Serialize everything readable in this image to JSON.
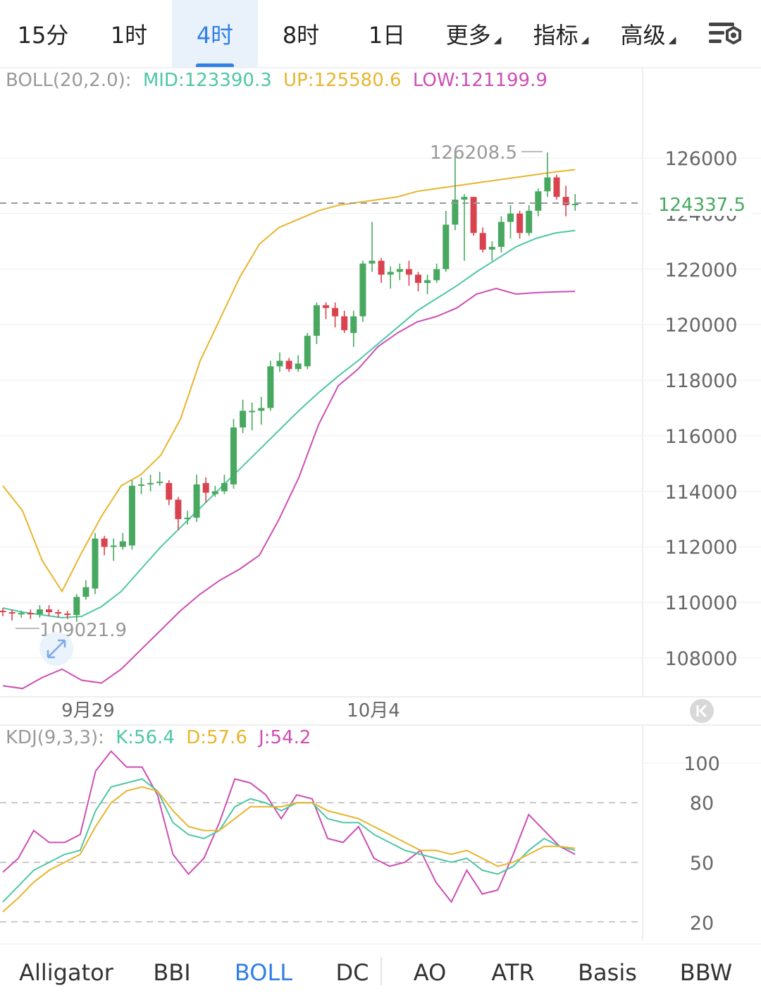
{
  "timeframe_tabs": [
    {
      "label": "15分"
    },
    {
      "label": "1时"
    },
    {
      "label": "4时",
      "active": true
    },
    {
      "label": "8时"
    },
    {
      "label": "1日"
    },
    {
      "label": "更多",
      "dropdown": true
    },
    {
      "label": "指标",
      "dropdown": true
    },
    {
      "label": "高级",
      "dropdown": true
    }
  ],
  "settings_icon": "chart-settings-icon",
  "boll_legend": {
    "name": "BOLL(20,2.0):",
    "mid": "MID:123390.3",
    "up": "UP:125580.6",
    "low": "LOW:121199.9"
  },
  "kdj_legend": {
    "name": "KDJ(9,3,3):",
    "k": "K:56.4",
    "d": "D:57.6",
    "j": "J:54.2"
  },
  "price_axis": [
    "126000",
    "124000",
    "122000",
    "120000",
    "118000",
    "116000",
    "114000",
    "112000",
    "110000",
    "108000"
  ],
  "current_price": "124337.5",
  "high_marker": "126208.5",
  "low_marker": "109021.9",
  "date_labels": [
    "9月29",
    "10月4"
  ],
  "kdj_axis": [
    "100",
    "80",
    "50",
    "20"
  ],
  "indicator_tabs": [
    {
      "label": "Alligator"
    },
    {
      "label": "BBI"
    },
    {
      "label": "BOLL",
      "active": true
    },
    {
      "label": "DC"
    },
    {
      "label": "AO"
    },
    {
      "label": "ATR"
    },
    {
      "label": "Basis"
    },
    {
      "label": "BBW"
    }
  ],
  "colors": {
    "up": "#48a860",
    "down": "#d9434f",
    "mid": "#4fc7a5",
    "upper": "#e8b52e",
    "lower": "#cc4fb4",
    "accent": "#2f7fe8"
  },
  "chart_data": {
    "type": "candlestick",
    "ylim": [
      107000,
      127500
    ],
    "candles": [
      [
        109700,
        109650,
        109800,
        109500
      ],
      [
        109650,
        109600,
        109750,
        109350
      ],
      [
        109600,
        109620,
        109700,
        109450
      ],
      [
        109620,
        109580,
        109750,
        109400
      ],
      [
        109580,
        109750,
        109900,
        109450
      ],
      [
        109750,
        109650,
        109900,
        109500
      ],
      [
        109650,
        109600,
        109750,
        109450
      ],
      [
        109600,
        109550,
        109700,
        109400
      ],
      [
        109550,
        110200,
        110300,
        109300
      ],
      [
        110200,
        110550,
        110800,
        110100
      ],
      [
        110500,
        112300,
        112500,
        110300
      ],
      [
        112300,
        112000,
        112400,
        111700
      ],
      [
        112000,
        112050,
        112300,
        111500
      ],
      [
        112000,
        112200,
        112500,
        111900
      ],
      [
        112050,
        114200,
        114400,
        111900
      ],
      [
        114200,
        114250,
        114500,
        113900
      ],
      [
        114250,
        114300,
        114600,
        114000
      ],
      [
        114300,
        114350,
        114700,
        114200
      ],
      [
        114300,
        113700,
        114400,
        113500
      ],
      [
        113700,
        113000,
        113800,
        112600
      ],
      [
        113000,
        113050,
        113300,
        112800
      ],
      [
        113050,
        114250,
        114600,
        112900
      ],
      [
        114300,
        113950,
        114500,
        113600
      ],
      [
        113900,
        114000,
        114200,
        113800
      ],
      [
        114000,
        114300,
        114600,
        113900
      ],
      [
        114250,
        116300,
        116600,
        114100
      ],
      [
        116300,
        116900,
        117300,
        116100
      ],
      [
        116900,
        116900,
        117200,
        116200
      ],
      [
        116900,
        117000,
        117400,
        116400
      ],
      [
        117000,
        118500,
        118700,
        116900
      ],
      [
        118500,
        118700,
        119000,
        118300
      ],
      [
        118700,
        118400,
        118800,
        118300
      ],
      [
        118400,
        118600,
        118900,
        118300
      ],
      [
        118500,
        119600,
        119700,
        118400
      ],
      [
        119600,
        120700,
        120800,
        119300
      ],
      [
        120700,
        120600,
        120800,
        120200
      ],
      [
        120600,
        120300,
        120800,
        119900
      ],
      [
        120300,
        119800,
        120500,
        119700
      ],
      [
        119700,
        120300,
        120500,
        119200
      ],
      [
        120300,
        122200,
        122300,
        120100
      ],
      [
        122200,
        122300,
        123700,
        121900
      ],
      [
        122300,
        121800,
        122400,
        121500
      ],
      [
        121800,
        121900,
        122100,
        121300
      ],
      [
        121900,
        122000,
        122200,
        121600
      ],
      [
        122000,
        121800,
        122300,
        121400
      ],
      [
        121800,
        121500,
        121900,
        121200
      ],
      [
        121500,
        121600,
        121800,
        121100
      ],
      [
        121600,
        122000,
        122200,
        121500
      ],
      [
        122000,
        123600,
        124100,
        121900
      ],
      [
        123600,
        124500,
        126200,
        123400
      ],
      [
        124500,
        124600,
        124700,
        122300
      ],
      [
        124600,
        123300,
        124500,
        123200
      ],
      [
        123300,
        122700,
        123500,
        122600
      ],
      [
        122700,
        122800,
        123000,
        122300
      ],
      [
        122800,
        123700,
        123900,
        122600
      ],
      [
        123700,
        124000,
        124300,
        123100
      ],
      [
        124000,
        123300,
        124100,
        123100
      ],
      [
        123300,
        124100,
        124300,
        123200
      ],
      [
        124100,
        124800,
        124900,
        123900
      ],
      [
        124800,
        125300,
        126200,
        124600
      ],
      [
        125300,
        124600,
        125400,
        124500
      ],
      [
        124600,
        124300,
        125000,
        123900
      ],
      [
        124300,
        124350,
        124700,
        124100
      ]
    ],
    "boll_mid": [
      109800,
      109650,
      109550,
      109450,
      109500,
      109850,
      110400,
      111200,
      112000,
      112700,
      113400,
      114100,
      114800,
      115500,
      116200,
      116900,
      117550,
      118150,
      118700,
      119300,
      119900,
      120500,
      120950,
      121400,
      121900,
      122350,
      122800,
      123100,
      123300,
      123390
    ],
    "boll_upper": [
      114200,
      113300,
      111500,
      110400,
      111800,
      113100,
      114200,
      114600,
      115300,
      116600,
      118700,
      120200,
      121700,
      122900,
      123500,
      123800,
      124100,
      124300,
      124400,
      124500,
      124600,
      124800,
      124900,
      125000,
      125100,
      125200,
      125300,
      125400,
      125500,
      125580
    ],
    "boll_lower": [
      107000,
      106900,
      107300,
      107600,
      107200,
      107100,
      107600,
      108300,
      109000,
      109700,
      110300,
      110800,
      111200,
      111700,
      113000,
      114500,
      116400,
      117800,
      118400,
      119200,
      119700,
      120100,
      120300,
      120600,
      121100,
      121300,
      121100,
      121150,
      121180,
      121200
    ],
    "kdj_ylim": [
      15,
      110
    ],
    "kdj_k": [
      30,
      38,
      46,
      50,
      54,
      56,
      76,
      88,
      90,
      92,
      86,
      70,
      64,
      62,
      66,
      78,
      82,
      80,
      76,
      80,
      80,
      72,
      70,
      70,
      64,
      60,
      56,
      54,
      52,
      50,
      52,
      46,
      44,
      48,
      56,
      62,
      58,
      56
    ],
    "kdj_d": [
      25,
      32,
      40,
      46,
      50,
      54,
      68,
      80,
      86,
      88,
      86,
      76,
      68,
      66,
      66,
      72,
      78,
      78,
      78,
      80,
      80,
      76,
      74,
      72,
      68,
      64,
      60,
      56,
      56,
      54,
      56,
      52,
      48,
      50,
      54,
      58,
      58,
      57
    ],
    "kdj_j": [
      45,
      52,
      66,
      60,
      60,
      64,
      96,
      106,
      98,
      98,
      84,
      54,
      44,
      52,
      70,
      92,
      90,
      84,
      72,
      84,
      82,
      62,
      60,
      68,
      52,
      48,
      50,
      56,
      40,
      30,
      46,
      34,
      36,
      54,
      74,
      66,
      58,
      54
    ]
  }
}
